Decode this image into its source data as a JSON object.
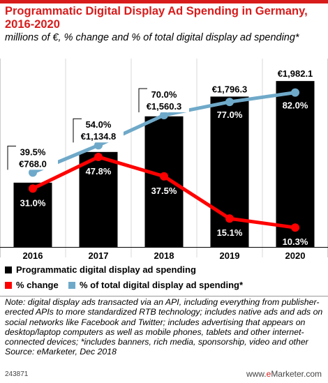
{
  "title": "Programmatic Digital Display Ad Spending in Germany, 2016-2020",
  "subtitle": "millions of €, % change and % of total digital display ad spending*",
  "chart_data": {
    "type": "bar",
    "categories": [
      "2016",
      "2017",
      "2018",
      "2019",
      "2020"
    ],
    "series": [
      {
        "name": "Programmatic digital display ad spending",
        "kind": "bar",
        "color": "#000000",
        "values": [
          768.0,
          1134.8,
          1560.3,
          1796.3,
          1982.1
        ],
        "labels": [
          "€768.0",
          "€1,134.8",
          "€1,560.3",
          "€1,796.3",
          "€1,982.1"
        ]
      },
      {
        "name": "% change",
        "kind": "line",
        "color": "#ff0000",
        "values": [
          31.0,
          47.8,
          37.5,
          15.1,
          10.3
        ],
        "labels": [
          "31.0%",
          "47.8%",
          "37.5%",
          "15.1%",
          "10.3%"
        ]
      },
      {
        "name": "% of total digital display ad spending*",
        "kind": "line",
        "color": "#6fa9c9",
        "values": [
          39.5,
          54.0,
          70.0,
          77.0,
          82.0
        ],
        "labels": [
          "39.5%",
          "54.0%",
          "70.0%",
          "77.0%",
          "82.0%"
        ]
      }
    ],
    "ylim": [
      0,
      2100
    ],
    "grid": false,
    "legend": "bottom"
  },
  "note": "Note: digital display ads transacted via an API, including everything from publisher-erected APIs to more standardized RTB technology; includes native ads and ads on social networks like Facebook and Twitter; includes advertising that appears on desktop/laptop computers as well as mobile phones, tablets and other internet-connected devices; *includes banners, rich media, sponsorship, video and other",
  "source": "Source: eMarketer, Dec 2018",
  "chart_code": "243871",
  "brand": {
    "prefix": "www.",
    "e": "e",
    "rest": "Marketer.com"
  }
}
